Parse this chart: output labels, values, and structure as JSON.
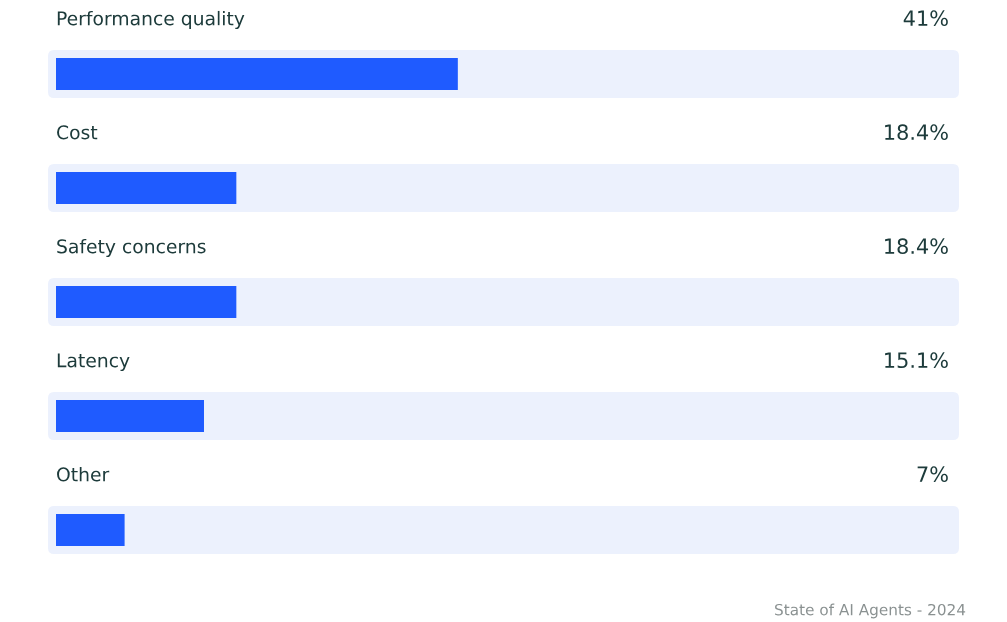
{
  "chart_data": {
    "type": "bar",
    "orientation": "horizontal",
    "categories": [
      "Performance quality",
      "Cost",
      "Safety concerns",
      "Latency",
      "Other"
    ],
    "values": [
      41,
      18.4,
      18.4,
      15.1,
      7
    ],
    "value_labels": [
      "41%",
      "18.4%",
      "18.4%",
      "15.1%",
      "7%"
    ],
    "color": "#1f5bff",
    "tick_labels": "y",
    "annotations": [
      "State of AI Agents - 2024"
    ]
  }
}
